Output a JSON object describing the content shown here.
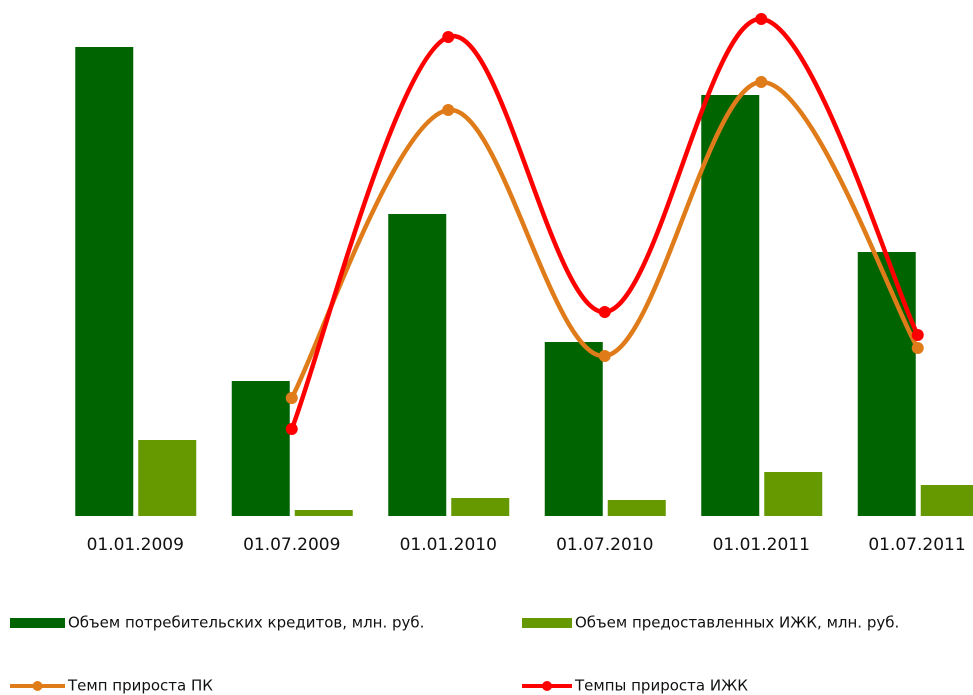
{
  "chart_data": {
    "type": "bar-line",
    "categories": [
      "01.01.2009",
      "01.07.2009",
      "01.01.2010",
      "01.07.2010",
      "01.01.2011",
      "01.07.2011"
    ],
    "ylim": [
      0,
      516
    ],
    "series": [
      {
        "name": "Объем потребительских кредитов, млн. руб.",
        "type": "bar",
        "color": "#006400",
        "values": [
          469,
          135,
          302,
          174,
          421,
          264
        ]
      },
      {
        "name": "Объем предоставленных ИЖК, млн. руб.",
        "type": "bar",
        "color": "#669900",
        "values": [
          76,
          6,
          18,
          16,
          44,
          31
        ]
      },
      {
        "name": "Темп прироста ПК",
        "type": "line",
        "color": "#e07b1a",
        "values": [
          null,
          118,
          406,
          160,
          434,
          168
        ]
      },
      {
        "name": "Темпы прироста ИЖК",
        "type": "line",
        "color": "#ff0000",
        "values": [
          null,
          87,
          479,
          204,
          497,
          181
        ]
      }
    ]
  }
}
